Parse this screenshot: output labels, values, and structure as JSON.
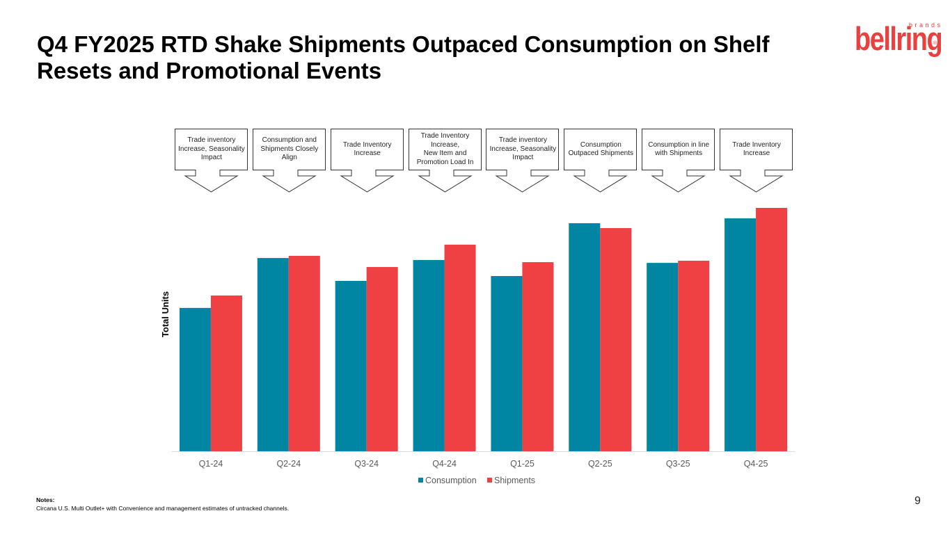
{
  "slide": {
    "title": "Q4 FY2025 RTD Shake Shipments Outpaced Consumption on Shelf Resets and Promotional Events",
    "logo": {
      "word": "bellring",
      "sub": "brands",
      "registered": "®",
      "brand_color": "#e8413f",
      "accent_color": "#f0a14a"
    },
    "page_number": "9",
    "notes": {
      "heading": "Notes:",
      "text": "Circana U.S. Multi Outlet+ with Convenience and management estimates of untracked channels."
    }
  },
  "callouts": [
    {
      "quarter": "Q1-24",
      "text": "Trade inventory\nIncrease, Seasonality\nImpact"
    },
    {
      "quarter": "Q2-24",
      "text": "Consumption and\nShipments Closely\nAlign"
    },
    {
      "quarter": "Q3-24",
      "text": "Trade Inventory\nIncrease"
    },
    {
      "quarter": "Q4-24",
      "text": "Trade Inventory\nIncrease,\nNew Item and\nPromotion Load In"
    },
    {
      "quarter": "Q1-25",
      "text": "Trade inventory\nIncrease, Seasonality\nImpact"
    },
    {
      "quarter": "Q2-25",
      "text": "Consumption\nOutpaced Shipments"
    },
    {
      "quarter": "Q3-25",
      "text": "Consumption in line\nwith Shipments"
    },
    {
      "quarter": "Q4-25",
      "text": "Trade Inventory\nIncrease"
    }
  ],
  "chart_data": {
    "type": "bar",
    "title": "",
    "xlabel": "",
    "ylabel": "Total Units",
    "y_unit_note": "Relative index (axis unlabeled; tallest bar = 100)",
    "ylim": [
      0,
      100
    ],
    "grid": false,
    "legend_position": "bottom",
    "categories": [
      "Q1-24",
      "Q2-24",
      "Q3-24",
      "Q4-24",
      "Q1-25",
      "Q2-25",
      "Q3-25",
      "Q4-25"
    ],
    "series": [
      {
        "name": "Consumption",
        "color": "#0086a3",
        "values": [
          58.9,
          79.4,
          70.0,
          78.6,
          72.0,
          93.7,
          77.4,
          95.7
        ]
      },
      {
        "name": "Shipments",
        "color": "#ef4044",
        "values": [
          64.0,
          80.3,
          75.7,
          84.9,
          77.7,
          91.7,
          78.3,
          100.0
        ]
      }
    ]
  }
}
